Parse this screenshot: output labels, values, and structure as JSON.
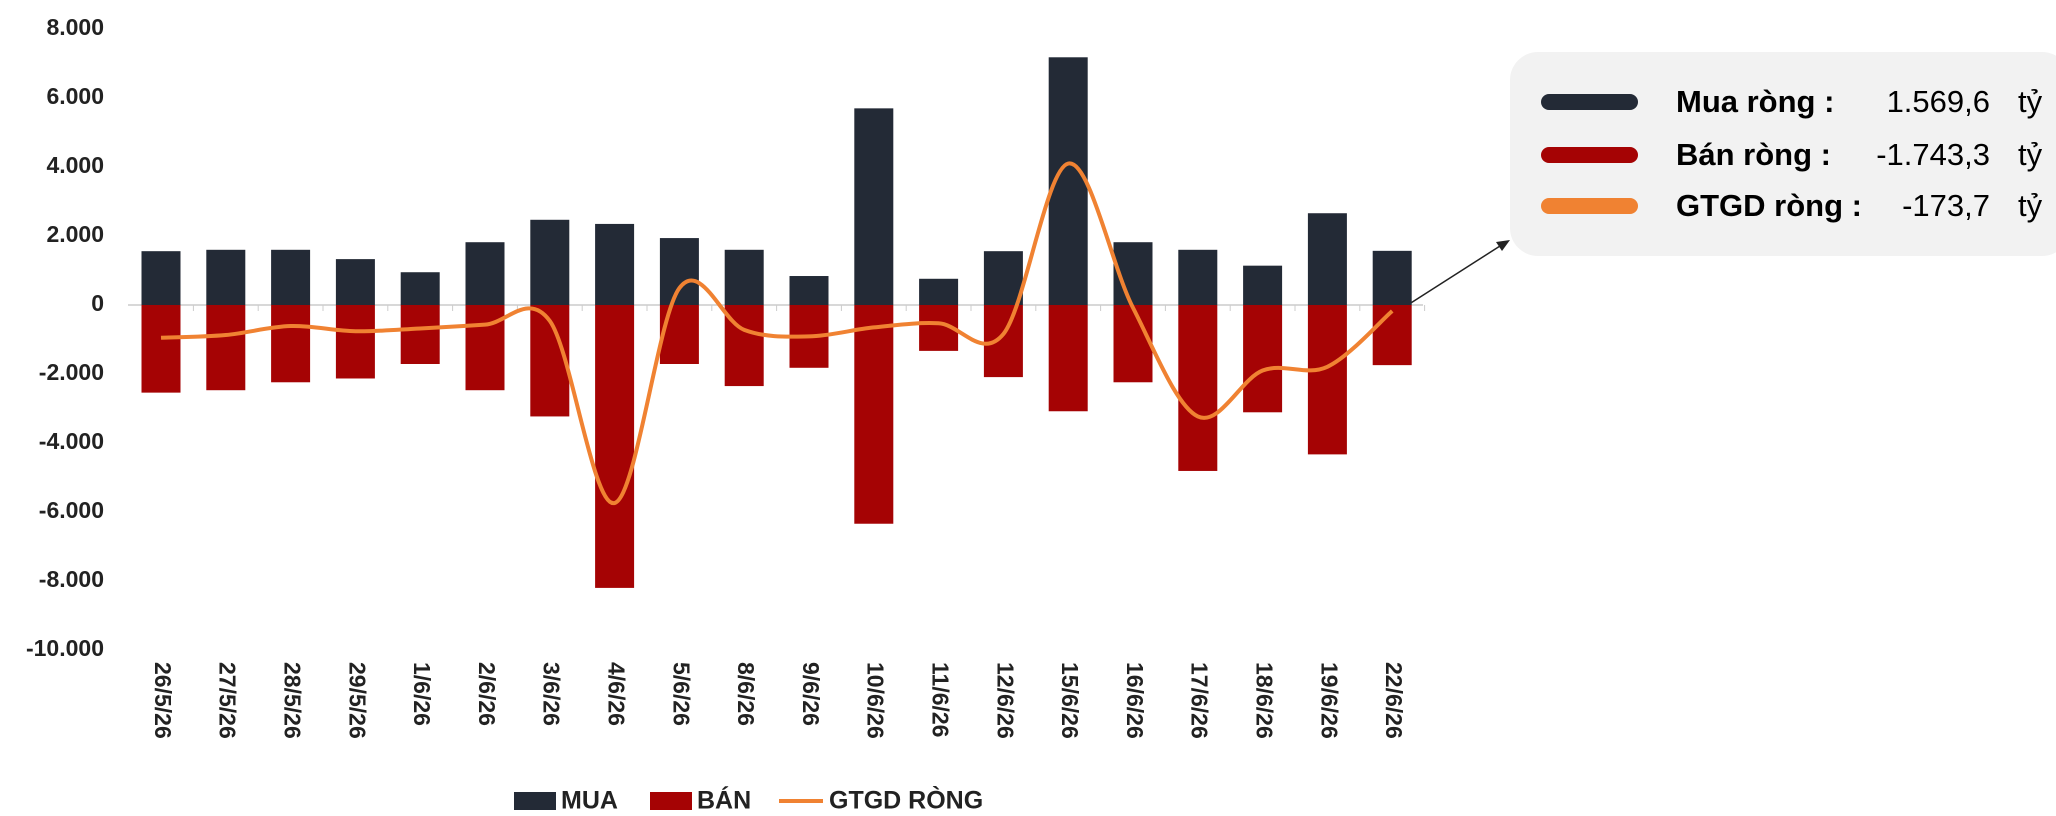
{
  "chart_data": {
    "type": "bar",
    "categories": [
      "26/5/26",
      "27/5/26",
      "28/5/26",
      "29/5/26",
      "1/6/26",
      "2/6/26",
      "3/6/26",
      "4/6/26",
      "5/6/26",
      "8/6/26",
      "9/6/26",
      "10/6/26",
      "11/6/26",
      "12/6/26",
      "15/6/26",
      "16/6/26",
      "17/6/26",
      "18/6/26",
      "19/6/26",
      "22/6/26"
    ],
    "series": [
      {
        "name": "MUA",
        "color": "#232a36",
        "values": [
          1560,
          1600,
          1600,
          1330,
          950,
          1820,
          2470,
          2350,
          1940,
          1600,
          840,
          5700,
          760,
          1560,
          7180,
          1820,
          1600,
          1140,
          2660,
          1570
        ]
      },
      {
        "name": "BÁN",
        "color": "#a50304",
        "values": [
          -2540,
          -2470,
          -2240,
          -2130,
          -1710,
          -2470,
          -3230,
          -8200,
          -1710,
          -2350,
          -1820,
          -6340,
          -1330,
          -2090,
          -3080,
          -2240,
          -4810,
          -3110,
          -4330,
          -1743
        ]
      },
      {
        "name": "GTGD RÒNG",
        "color": "#f08232",
        "type": "line",
        "values": [
          -950,
          -870,
          -610,
          -760,
          -680,
          -570,
          -460,
          -5740,
          490,
          -720,
          -910,
          -650,
          -530,
          -840,
          4100,
          -80,
          -3230,
          -1900,
          -1790,
          -174
        ]
      }
    ],
    "ylim": [
      -10000,
      8000
    ],
    "yticks": [
      {
        "value": 8000,
        "label": "8.000"
      },
      {
        "value": 6000,
        "label": "6.000"
      },
      {
        "value": 4000,
        "label": "4.000"
      },
      {
        "value": 2000,
        "label": "2.000"
      },
      0,
      {
        "value": -2000,
        "label": "-2.000"
      },
      {
        "value": -4000,
        "label": "-4.000"
      },
      {
        "value": -6000,
        "label": "-6.000"
      },
      {
        "value": -8000,
        "label": "-8.000"
      },
      {
        "value": -10000,
        "label": "-10.000"
      }
    ],
    "annotations": [
      {
        "label": "Mua ròng :",
        "value": "1.569,6",
        "unit": "tỷ",
        "color": "#232a36"
      },
      {
        "label": "Bán ròng :",
        "value": "-1.743,3",
        "unit": "tỷ",
        "color": "#a50304"
      },
      {
        "label": "GTGD ròng :",
        "value": "-173,7",
        "unit": "tỷ",
        "color": "#f08232"
      }
    ]
  }
}
